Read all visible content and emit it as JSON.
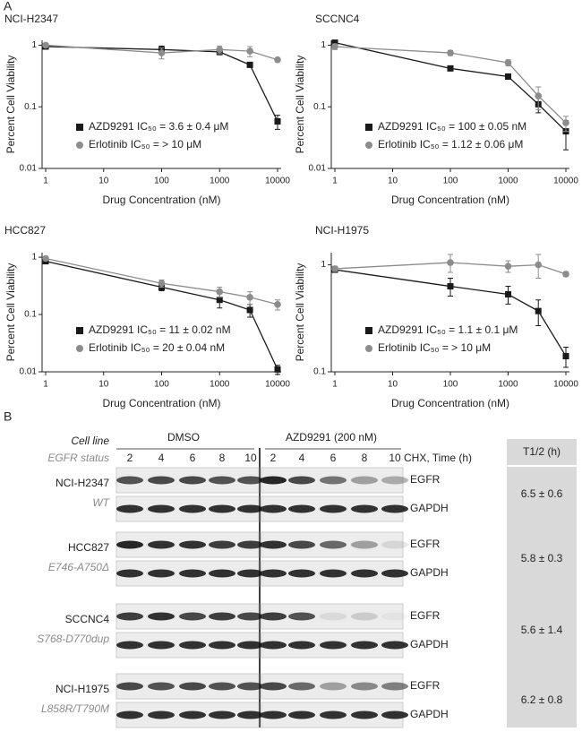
{
  "panel_labels": [
    "A",
    "B"
  ],
  "chart_data": [
    {
      "type": "line",
      "title": "NCI-H2347",
      "y_label": "Percent Cell Viability",
      "x_label": "Drug Concentration (nM)",
      "xscale": "log",
      "yscale": "log",
      "xlim": [
        1,
        10000
      ],
      "ylim": [
        0.01,
        1.2
      ],
      "xticks": [
        1,
        10,
        100,
        1000,
        10000
      ],
      "yticks": [
        0.01,
        0.1,
        1
      ],
      "x": [
        1,
        100,
        1000,
        3333,
        10000
      ],
      "series": [
        {
          "name": "AZD9291 IC₅₀ = 3.6 ± 0.4 μM",
          "color": "#1a1a1a",
          "marker": "square",
          "values": [
            0.95,
            0.85,
            0.78,
            0.48,
            0.058
          ],
          "errors": [
            0.05,
            0.12,
            0.08,
            0.04,
            0.015
          ]
        },
        {
          "name": "Erlotinib IC₅₀ = > 10 μM",
          "color": "#8c8c8c",
          "marker": "circle",
          "values": [
            1.0,
            0.75,
            0.85,
            0.8,
            0.58
          ],
          "errors": [
            0.05,
            0.15,
            0.12,
            0.15,
            0.04
          ]
        }
      ]
    },
    {
      "type": "line",
      "title": "SCCNC4",
      "y_label": "Percent Cell Viability",
      "x_label": "Drug Concentration (nM)",
      "xscale": "log",
      "yscale": "log",
      "xlim": [
        1,
        10000
      ],
      "ylim": [
        0.01,
        1.2
      ],
      "xticks": [
        1,
        10,
        100,
        1000,
        10000
      ],
      "yticks": [
        0.01,
        0.1,
        1
      ],
      "x": [
        1,
        100,
        1000,
        3333,
        10000
      ],
      "series": [
        {
          "name": "AZD9291 IC₅₀ = 100 ± 0.05 nM",
          "color": "#1a1a1a",
          "marker": "square",
          "values": [
            1.1,
            0.42,
            0.31,
            0.11,
            0.04
          ],
          "errors": [
            0.05,
            0.03,
            0.03,
            0.03,
            0.02
          ]
        },
        {
          "name": "Erlotinib IC₅₀ = 1.12 ± 0.06 μM",
          "color": "#8c8c8c",
          "marker": "circle",
          "values": [
            0.95,
            0.75,
            0.52,
            0.15,
            0.055
          ],
          "errors": [
            0.1,
            0.07,
            0.06,
            0.06,
            0.015
          ]
        }
      ]
    },
    {
      "type": "line",
      "title": "HCC827",
      "y_label": "Percent Cell Viability",
      "x_label": "Drug Concentration (nM)",
      "xscale": "log",
      "yscale": "log",
      "xlim": [
        1,
        10000
      ],
      "ylim": [
        0.01,
        1.2
      ],
      "xticks": [
        1,
        10,
        100,
        1000,
        10000
      ],
      "yticks": [
        0.01,
        0.1,
        1
      ],
      "x": [
        1,
        100,
        1000,
        3333,
        10000
      ],
      "series": [
        {
          "name": "AZD9291 IC₅₀ = 11 ± 0.02 nM",
          "color": "#1a1a1a",
          "marker": "square",
          "values": [
            0.85,
            0.3,
            0.18,
            0.12,
            0.011
          ],
          "errors": [
            0.05,
            0.04,
            0.05,
            0.03,
            0.002
          ]
        },
        {
          "name": "Erlotinib IC₅₀ = 20 ± 0.04 nM",
          "color": "#8c8c8c",
          "marker": "circle",
          "values": [
            0.95,
            0.35,
            0.25,
            0.2,
            0.15
          ],
          "errors": [
            0.05,
            0.05,
            0.05,
            0.05,
            0.03
          ]
        }
      ]
    },
    {
      "type": "line",
      "title": "NCI-H1975",
      "y_label": "Percent Cell Viability",
      "x_label": "Drug Concentration (nM)",
      "xscale": "log",
      "yscale": "log",
      "xlim": [
        1,
        10000
      ],
      "ylim": [
        0.1,
        1.3
      ],
      "xticks": [
        1,
        10,
        100,
        1000,
        10000
      ],
      "yticks": [
        0.1,
        1
      ],
      "x": [
        1,
        100,
        1000,
        3333,
        10000
      ],
      "series": [
        {
          "name": "AZD9291 IC₅₀ = 1.1 ± 0.1 μM",
          "color": "#1a1a1a",
          "marker": "square",
          "values": [
            0.9,
            0.63,
            0.53,
            0.37,
            0.14
          ],
          "errors": [
            0.05,
            0.12,
            0.1,
            0.1,
            0.03
          ]
        },
        {
          "name": "Erlotinib IC₅₀ = > 10 μM",
          "color": "#8c8c8c",
          "marker": "circle",
          "values": [
            0.92,
            1.05,
            0.97,
            1.0,
            0.82
          ],
          "errors": [
            0.05,
            0.2,
            0.12,
            0.25,
            0.04
          ]
        }
      ]
    }
  ],
  "blot": {
    "header": {
      "cell_line": "Cell line",
      "egfr_status": "EGFR status",
      "time_label": "CHX, Time (h)",
      "t_half": "T1/2 (h)"
    },
    "groups": [
      {
        "name": "DMSO",
        "lanes": [
          2,
          4,
          6,
          8,
          10
        ]
      },
      {
        "name": "AZD9291 (200 nM)",
        "lanes": [
          2,
          4,
          6,
          8,
          10
        ]
      }
    ],
    "rows": [
      {
        "cell_line": "NCI-H2347",
        "status": "WT",
        "bands": [
          "EGFR",
          "GAPDH"
        ],
        "t_half": "6.5 ± 0.6"
      },
      {
        "cell_line": "HCC827",
        "status": "E746-A750Δ",
        "bands": [
          "EGFR",
          "GAPDH"
        ],
        "t_half": "5.8 ± 0.3"
      },
      {
        "cell_line": "SCCNC4",
        "status": "S768-D770dup",
        "bands": [
          "EGFR",
          "GAPDH"
        ],
        "t_half": "5.6 ± 1.4"
      },
      {
        "cell_line": "NCI-H1975",
        "status": "L858R/T790M",
        "bands": [
          "EGFR",
          "GAPDH"
        ],
        "t_half": "6.2 ± 0.8"
      }
    ]
  }
}
